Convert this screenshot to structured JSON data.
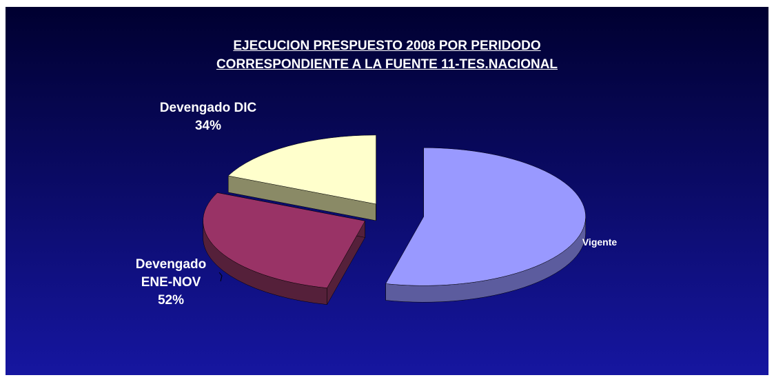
{
  "chart_data": {
    "type": "pie3d",
    "title": [
      "EJECUCION PRESPUESTO 2008 POR PERIDODO",
      "CORRESPONDIENTE A LA FUENTE 11-TES.NACIONAL"
    ],
    "categories": [
      "Vigente",
      "Devengado ENE-NOV",
      "Devengado DIC"
    ],
    "values": [
      100,
      52,
      34
    ],
    "value_labels": [
      null,
      "52%",
      "34%"
    ],
    "colors": [
      "#9999ff",
      "#993366",
      "#ffffcc"
    ],
    "side_colors": [
      "#5c5c9e",
      "#55203a",
      "#8a8a66"
    ]
  }
}
